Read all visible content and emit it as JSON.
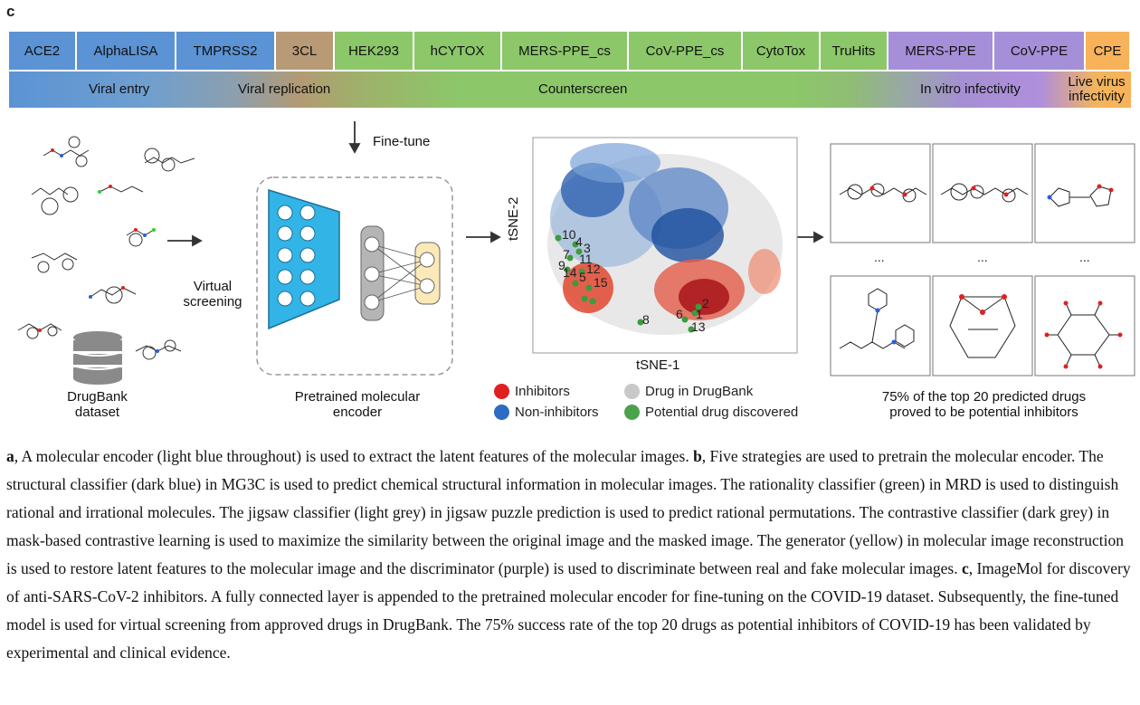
{
  "panel_label": "c",
  "assays": [
    {
      "label": "ACE2",
      "color": "#5b93d4",
      "width": 75
    },
    {
      "label": "AlphaLISA",
      "color": "#5b93d4",
      "width": 110
    },
    {
      "label": "TMPRSS2",
      "color": "#5b93d4",
      "width": 110
    },
    {
      "label": "3CL",
      "color": "#b99a76",
      "width": 65
    },
    {
      "label": "HEK293",
      "color": "#8cc76a",
      "width": 88
    },
    {
      "label": "hCYTOX",
      "color": "#8cc76a",
      "width": 97
    },
    {
      "label": "MERS-PPE_cs",
      "color": "#8cc76a",
      "width": 140
    },
    {
      "label": "CoV-PPE_cs",
      "color": "#8cc76a",
      "width": 126
    },
    {
      "label": "CytoTox",
      "color": "#8cc76a",
      "width": 86
    },
    {
      "label": "TruHits",
      "color": "#8cc76a",
      "width": 75
    },
    {
      "label": "MERS-PPE",
      "color": "#a58fd8",
      "width": 117
    },
    {
      "label": "CoV-PPE",
      "color": "#a58fd8",
      "width": 101
    },
    {
      "label": "CPE",
      "color": "#f7b25a",
      "width": 50
    }
  ],
  "categories": {
    "viral_entry": "Viral entry",
    "viral_replication": "Viral replication",
    "counterscreen": "Counterscreen",
    "in_vitro": "In vitro infectivity",
    "live_virus": "Live virus infectivity"
  },
  "labels": {
    "fine_tune": "Fine-tune",
    "virtual_screening": "Virtual screening",
    "drugbank_dataset": "DrugBank dataset",
    "pretrained_encoder": "Pretrained molecular encoder",
    "tsne_x": "tSNE-1",
    "tsne_y": "tSNE-2",
    "ellipsis": "...",
    "result_text": "75% of the top 20 predicted drugs proved to be potential inhibitors"
  },
  "tsne_points": [
    "10",
    "4",
    "3",
    "7",
    "11",
    "9",
    "12",
    "14",
    "5",
    "15",
    "8",
    "6",
    "2",
    "1",
    "13"
  ],
  "legend": [
    {
      "label": "Inhibitors",
      "color": "#e02020"
    },
    {
      "label": "Drug in DrugBank",
      "color": "#c8c8c8"
    },
    {
      "label": "Non-inhibitors",
      "color": "#2d6cc4"
    },
    {
      "label": "Potential drug discovered",
      "color": "#4aa34a"
    }
  ],
  "caption": [
    {
      "bold": "a",
      "text": ", A molecular encoder (light blue throughout) is used to extract the latent features of the molecular images. "
    },
    {
      "bold": "b",
      "text": ", Five strategies are used to pretrain the molecular encoder. The structural classifier (dark blue) in MG3C is used to predict chemical structural information in molecular images. The rationality classifier (green) in MRD is used to distinguish rational and irrational molecules. The jigsaw classifier (light grey) in jigsaw puzzle prediction is used to predict rational permutations. The contrastive classifier (dark grey) in mask-based contrastive learning is used to maximize the similarity between the original image and the masked image. The generator (yellow) in molecular image reconstruction is used to restore latent features to the molecular image and the discriminator (purple) is used to discriminate between real and fake molecular images. "
    },
    {
      "bold": "c",
      "text": ", ImageMol for discovery of anti-SARS-CoV-2 inhibitors. A fully connected layer is appended to the pretrained molecular encoder for fine-tuning on the COVID-19 dataset. Subsequently, the fine-tuned model is used for virtual screening from approved drugs in DrugBank. The 75% success rate of the top 20 drugs as potential inhibitors of COVID-19 has been validated by experimental and clinical evidence."
    }
  ]
}
